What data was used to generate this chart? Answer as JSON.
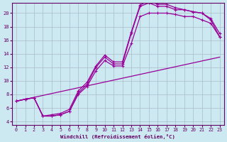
{
  "xlabel": "Windchill (Refroidissement éolien,°C)",
  "bg_color": "#cce8f0",
  "line_color": "#990099",
  "grid_color": "#aabbcc",
  "xlim": [
    -0.5,
    23.5
  ],
  "ylim": [
    3.5,
    21.5
  ],
  "xticks": [
    0,
    1,
    2,
    3,
    4,
    5,
    6,
    7,
    8,
    9,
    10,
    11,
    12,
    13,
    14,
    15,
    16,
    17,
    18,
    19,
    20,
    21,
    22,
    23
  ],
  "yticks": [
    4,
    6,
    8,
    10,
    12,
    14,
    16,
    18,
    20
  ],
  "curves": [
    {
      "x": [
        0,
        1,
        2,
        3,
        4,
        5,
        6,
        7,
        8,
        9,
        10,
        11,
        12,
        13,
        14,
        15,
        16,
        17,
        18,
        19,
        20,
        21,
        22,
        23
      ],
      "y": [
        7.0,
        7.3,
        7.5,
        4.8,
        4.8,
        5.0,
        5.5,
        8.2,
        9.5,
        12.0,
        13.5,
        12.5,
        12.5,
        17.0,
        21.0,
        21.5,
        21.0,
        21.0,
        20.5,
        20.5,
        20.2,
        20.0,
        19.0,
        16.5
      ],
      "marker": true
    },
    {
      "x": [
        0,
        1,
        2,
        3,
        4,
        5,
        6,
        7,
        8,
        9,
        10,
        11,
        12,
        13,
        14,
        15,
        16,
        17,
        18,
        19,
        20,
        21,
        22,
        23
      ],
      "y": [
        7.0,
        7.3,
        7.5,
        4.8,
        5.0,
        5.2,
        5.8,
        8.5,
        9.8,
        12.2,
        13.8,
        12.8,
        12.8,
        17.2,
        21.2,
        21.8,
        21.3,
        21.3,
        20.8,
        20.5,
        20.2,
        20.0,
        19.2,
        17.0
      ],
      "marker": true
    },
    {
      "x": [
        0,
        23
      ],
      "y": [
        7.0,
        13.5
      ],
      "marker": false
    },
    {
      "x": [
        0,
        1,
        2,
        3,
        4,
        5,
        6,
        7,
        8,
        9,
        10,
        11,
        12,
        13,
        14,
        15,
        16,
        17,
        18,
        19,
        20,
        21,
        22,
        23
      ],
      "y": [
        7.0,
        7.3,
        7.5,
        4.8,
        4.8,
        5.0,
        5.5,
        8.0,
        9.2,
        11.5,
        13.0,
        12.2,
        12.2,
        15.5,
        19.5,
        20.0,
        20.0,
        20.0,
        19.8,
        19.5,
        19.5,
        19.0,
        18.5,
        16.5
      ],
      "marker": true
    }
  ]
}
